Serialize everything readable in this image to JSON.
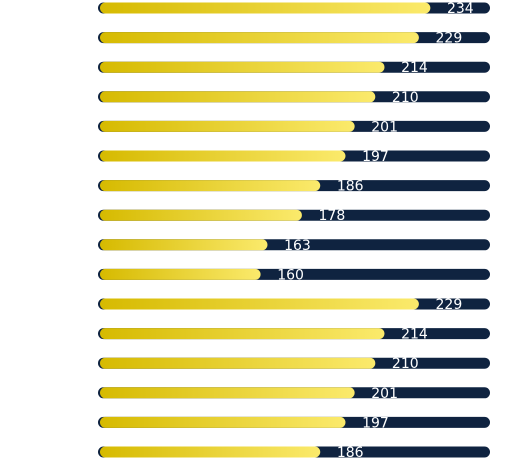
{
  "chart_data": {
    "type": "bar",
    "orientation": "horizontal",
    "values": [
      234,
      229,
      214,
      210,
      201,
      197,
      186,
      178,
      163,
      160,
      229,
      214,
      210,
      201,
      197,
      186
    ],
    "xlim": [
      90,
      260
    ],
    "track_color": "#0f2340",
    "color": "#e6cc1a"
  }
}
